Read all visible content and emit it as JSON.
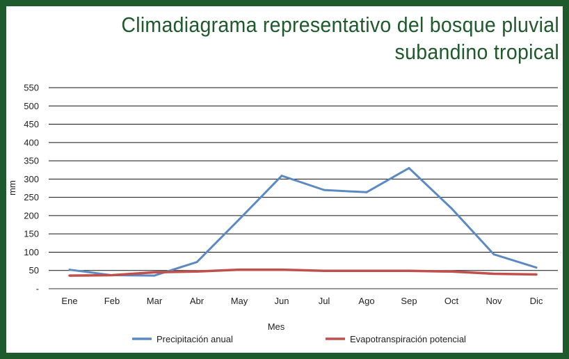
{
  "title_lines": [
    "Climadiagrama representativo del bosque pluvial",
    "subandino tropical"
  ],
  "chart_data": {
    "type": "line",
    "title": "Climadiagrama representativo del bosque pluvial subandino tropical",
    "xlabel": "Mes",
    "ylabel": "mm",
    "categories": [
      "Ene",
      "Feb",
      "Mar",
      "Abr",
      "May",
      "Jun",
      "Jul",
      "Ago",
      "Sep",
      "Oct",
      "Nov",
      "Dic"
    ],
    "y_ticks": [
      0,
      50,
      100,
      150,
      200,
      250,
      300,
      350,
      400,
      450,
      500,
      550
    ],
    "y_tick_labels": [
      "-",
      "50",
      "100",
      "150",
      "200",
      "250",
      "300",
      "350",
      "400",
      "450",
      "500",
      "550"
    ],
    "ylim": [
      0,
      550
    ],
    "grid": true,
    "legend_position": "bottom",
    "series": [
      {
        "name": "Precipitación anual",
        "color": "#5b8ac2",
        "values": [
          52,
          37,
          36,
          73,
          190,
          309,
          270,
          264,
          330,
          220,
          94,
          58
        ]
      },
      {
        "name": "Evapotranspiración potencial",
        "color": "#c0504d",
        "values": [
          36,
          37,
          45,
          47,
          52,
          52,
          49,
          49,
          49,
          47,
          41,
          39
        ]
      }
    ]
  }
}
